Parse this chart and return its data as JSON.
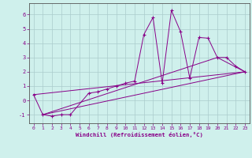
{
  "xlabel": "Windchill (Refroidissement éolien,°C)",
  "background_color": "#cff0ec",
  "line_color": "#880088",
  "grid_color": "#aacccc",
  "series_main": {
    "x": [
      0,
      1,
      2,
      3,
      4,
      6,
      7,
      8,
      9,
      10,
      11,
      12,
      13,
      14,
      15,
      16,
      17,
      18,
      19,
      20,
      21,
      22,
      23
    ],
    "y": [
      0.4,
      -1.0,
      -1.1,
      -1.0,
      -1.0,
      0.5,
      0.6,
      0.8,
      1.0,
      1.2,
      1.35,
      4.6,
      5.8,
      1.2,
      6.3,
      4.8,
      1.55,
      4.4,
      4.35,
      3.0,
      3.0,
      2.4,
      2.0
    ]
  },
  "series_lines": [
    {
      "x": [
        0,
        23
      ],
      "y": [
        0.4,
        2.0
      ]
    },
    {
      "x": [
        1,
        23
      ],
      "y": [
        -1.0,
        2.0
      ]
    },
    {
      "x": [
        1,
        20,
        23
      ],
      "y": [
        -1.0,
        3.0,
        2.0
      ]
    }
  ],
  "xlim": [
    -0.5,
    23.5
  ],
  "ylim": [
    -1.6,
    6.8
  ],
  "yticks": [
    -1,
    0,
    1,
    2,
    3,
    4,
    5,
    6
  ],
  "xticks": [
    0,
    1,
    2,
    3,
    4,
    5,
    6,
    7,
    8,
    9,
    10,
    11,
    12,
    13,
    14,
    15,
    16,
    17,
    18,
    19,
    20,
    21,
    22,
    23
  ]
}
